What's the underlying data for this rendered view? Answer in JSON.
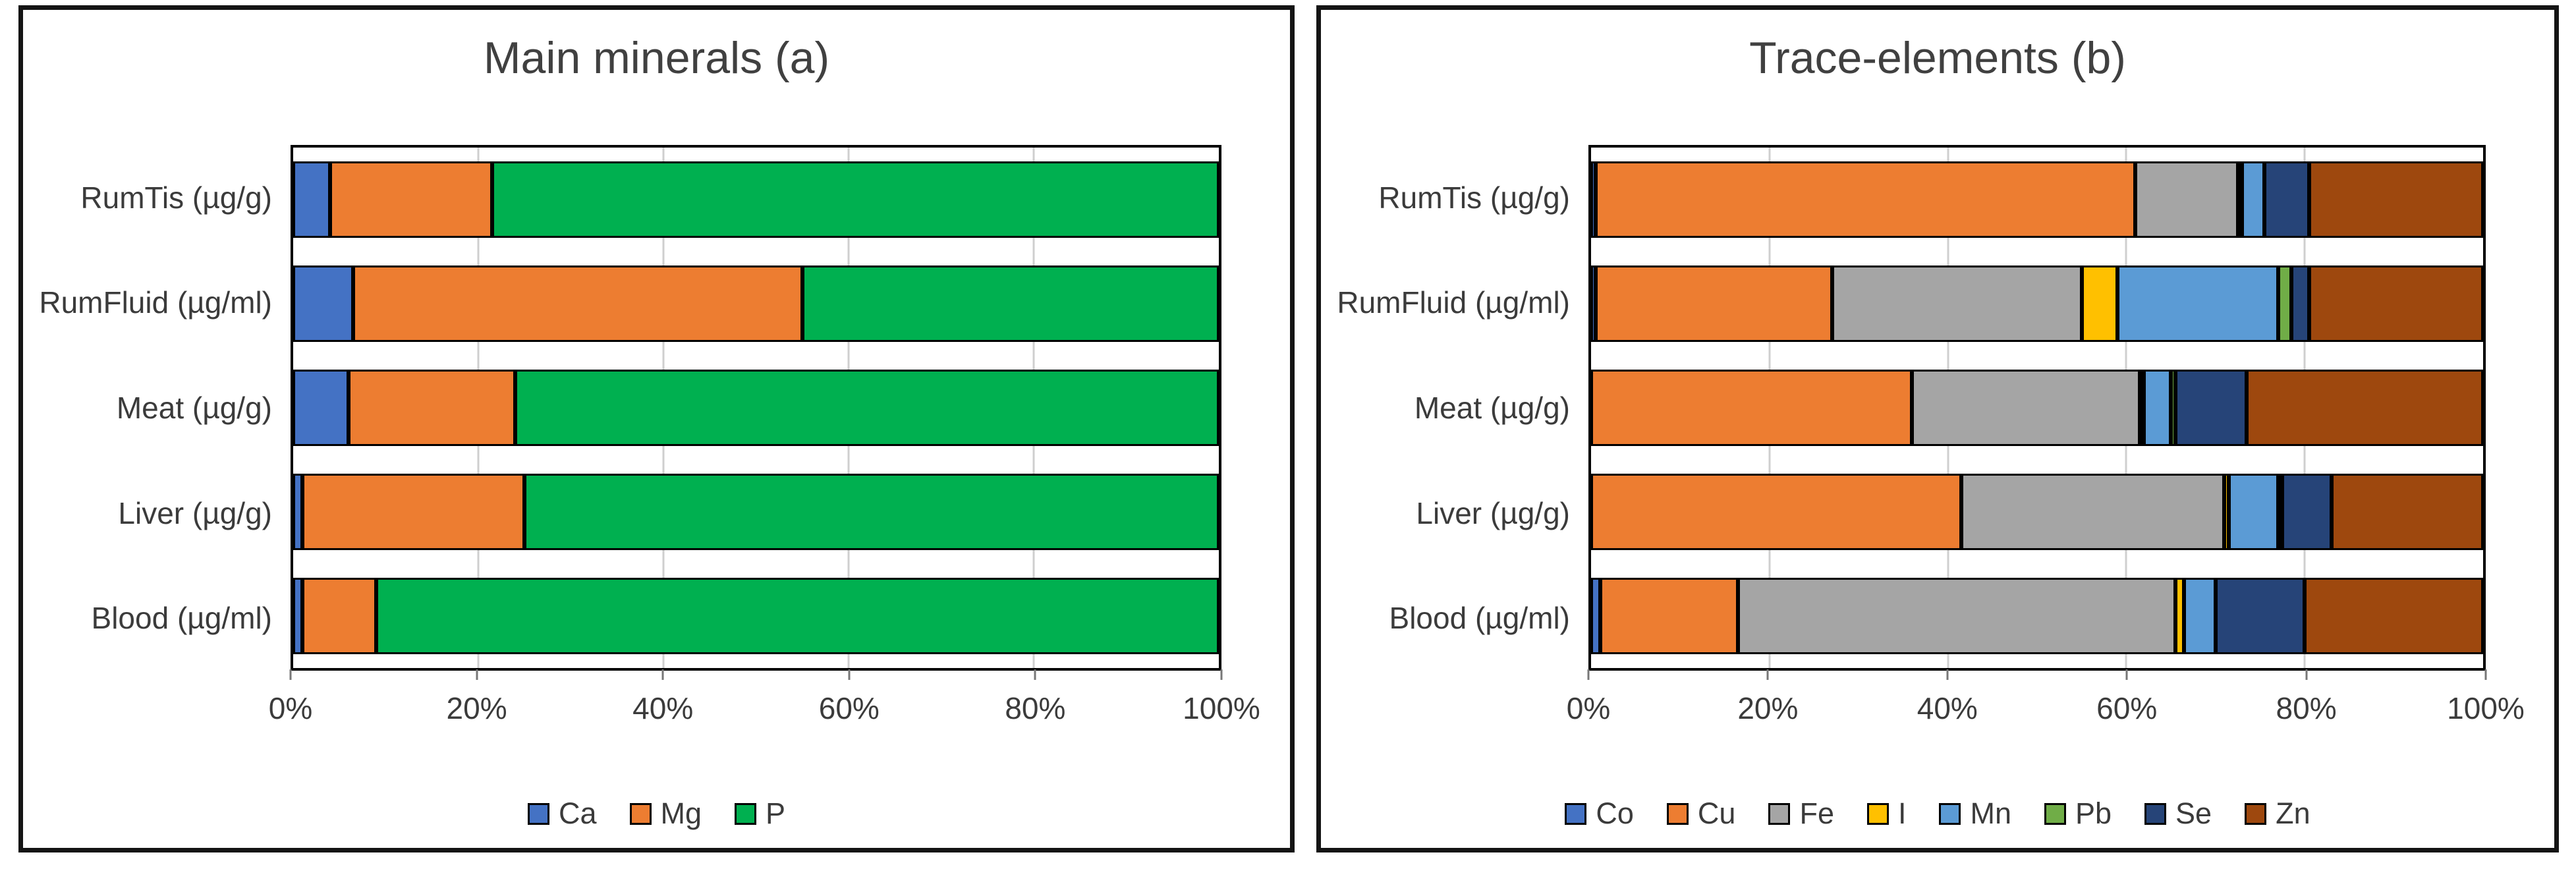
{
  "chart_data": [
    {
      "type": "bar",
      "stacked": true,
      "orientation": "horizontal",
      "title": "Main minerals (a)",
      "categories": [
        "RumTis (µg/g)",
        "RumFluid (µg/ml)",
        "Meat (µg/g)",
        "Liver (µg/g)",
        "Blood (µg/ml)"
      ],
      "series": [
        {
          "name": "Ca",
          "color": "#4472C4",
          "values": [
            4,
            6.5,
            6,
            1,
            1
          ]
        },
        {
          "name": "Mg",
          "color": "#ED7D31",
          "values": [
            17.5,
            48.5,
            18,
            24,
            8
          ]
        },
        {
          "name": "P",
          "color": "#00B050",
          "values": [
            78.5,
            45,
            76,
            75,
            91
          ]
        }
      ],
      "x_ticks": [
        "0%",
        "20%",
        "40%",
        "60%",
        "80%",
        "100%"
      ],
      "xlim": [
        0,
        100
      ],
      "grid": true,
      "legend_position": "bottom",
      "gridline_color": "#cfcfcf",
      "border_color": "#000000"
    },
    {
      "type": "bar",
      "stacked": true,
      "orientation": "horizontal",
      "title": "Trace-elements (b)",
      "categories": [
        "RumTis (µg/g)",
        "RumFluid (µg/ml)",
        "Meat (µg/g)",
        "Liver (µg/g)",
        "Blood (µg/ml)"
      ],
      "series": [
        {
          "name": "Co",
          "color": "#4472C4",
          "values": [
            0.5,
            0.5,
            0,
            0,
            1
          ]
        },
        {
          "name": "Cu",
          "color": "#ED7D31",
          "values": [
            60.5,
            26.5,
            36,
            41.5,
            15.5
          ]
        },
        {
          "name": "Fe",
          "color": "#A5A5A5",
          "values": [
            11.5,
            28,
            25.5,
            29.5,
            49
          ]
        },
        {
          "name": "I",
          "color": "#FFC000",
          "values": [
            0.5,
            4,
            0.5,
            0.5,
            1
          ]
        },
        {
          "name": "Mn",
          "color": "#5B9BD5",
          "values": [
            2.5,
            18,
            3,
            5.5,
            3.5
          ]
        },
        {
          "name": "Pb",
          "color": "#70AD47",
          "values": [
            0,
            1.5,
            0.5,
            0.5,
            0
          ]
        },
        {
          "name": "Se",
          "color": "#264478",
          "values": [
            5,
            2,
            8,
            5.5,
            10
          ]
        },
        {
          "name": "Zn",
          "color": "#9E480E",
          "values": [
            19.5,
            19.5,
            26.5,
            17,
            20
          ]
        }
      ],
      "x_ticks": [
        "0%",
        "20%",
        "40%",
        "60%",
        "80%",
        "100%"
      ],
      "xlim": [
        0,
        100
      ],
      "grid": true,
      "legend_position": "bottom",
      "gridline_color": "#cfcfcf",
      "border_color": "#000000"
    }
  ]
}
